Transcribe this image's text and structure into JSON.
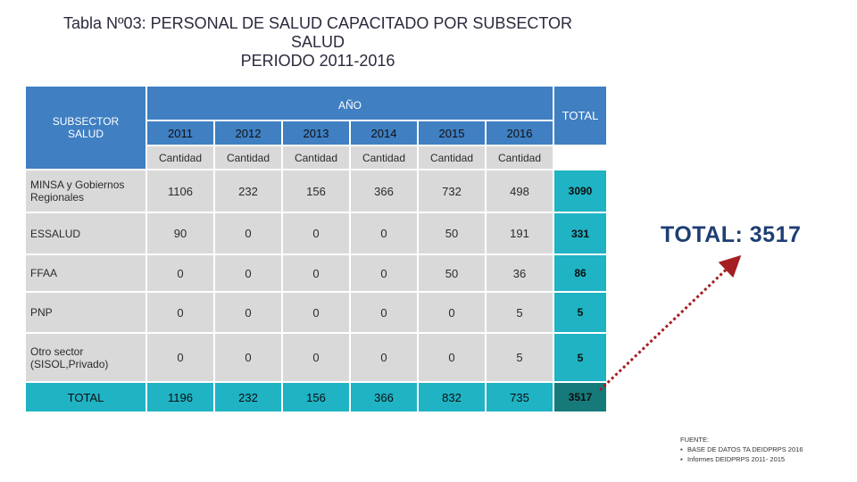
{
  "title": {
    "line1": "Tabla Nº03: PERSONAL DE SALUD CAPACITADO POR SUBSECTOR",
    "line2": "SALUD",
    "line3": "PERIODO 2011-2016"
  },
  "table": {
    "header_subsector": "SUBSECTOR SALUD",
    "header_year_group": "AÑO",
    "header_total": "TOTAL",
    "years": [
      "2011",
      "2012",
      "2013",
      "2014",
      "2015",
      "2016"
    ],
    "sub_label": "Cantidad",
    "rows": [
      {
        "name": "MINSA y Gobiernos Regionales",
        "values": [
          "1106",
          "232",
          "156",
          "366",
          "732",
          "498"
        ],
        "total": "3090"
      },
      {
        "name": "ESSALUD",
        "values": [
          "90",
          "0",
          "0",
          "0",
          "50",
          "191"
        ],
        "total": "331"
      },
      {
        "name": "FFAA",
        "values": [
          "0",
          "0",
          "0",
          "0",
          "50",
          "36"
        ],
        "total": "86"
      },
      {
        "name": "PNP",
        "values": [
          "0",
          "0",
          "0",
          "0",
          "0",
          "5"
        ],
        "total": "5"
      },
      {
        "name": "Otro sector (SISOL,Privado)",
        "values": [
          "0",
          "0",
          "0",
          "0",
          "0",
          "5"
        ],
        "total": "5"
      }
    ],
    "total_row": {
      "name": "TOTAL",
      "values": [
        "1196",
        "232",
        "156",
        "366",
        "832",
        "735"
      ],
      "total": "3517"
    }
  },
  "callout": "TOTAL: 3517",
  "source": {
    "heading": "FUENTE:",
    "items": [
      "BASE DE DATOS TA DEIDPRPS 2016",
      "Informes DEIDPRPS 2011- 2015"
    ]
  }
}
